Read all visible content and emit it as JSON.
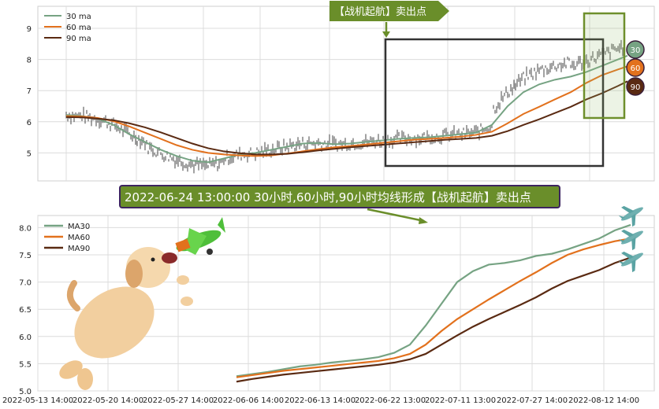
{
  "chart_data": [
    {
      "type": "line",
      "title": "",
      "xlabel": "",
      "ylabel": "",
      "ylim": [
        4.3,
        9.5
      ],
      "y_ticks": [
        "5",
        "6",
        "7",
        "8",
        "9"
      ],
      "grid": true,
      "legend": "top-left",
      "legend_items": [
        "30 ma",
        "60 ma",
        "90 ma"
      ],
      "price_series": "hourly candlesticks (gray)",
      "series": [
        {
          "name": "30 ma",
          "color": "#76a383",
          "x": [
            0,
            20,
            40,
            60,
            80,
            100,
            120,
            140,
            160,
            180,
            200,
            220,
            240,
            260,
            280,
            300,
            320,
            340,
            360,
            380,
            400,
            420,
            440,
            460,
            480,
            500,
            520,
            540,
            560,
            580,
            600,
            620,
            640,
            660,
            680,
            700,
            712
          ],
          "values": [
            6.22,
            6.18,
            6.1,
            5.9,
            5.6,
            5.35,
            5.1,
            4.9,
            4.75,
            4.7,
            4.82,
            4.95,
            5.0,
            5.1,
            5.2,
            5.3,
            5.32,
            5.28,
            5.3,
            5.35,
            5.4,
            5.45,
            5.48,
            5.5,
            5.55,
            5.6,
            5.65,
            5.9,
            6.5,
            6.95,
            7.2,
            7.35,
            7.45,
            7.6,
            7.8,
            8.0,
            8.12
          ]
        },
        {
          "name": "60 ma",
          "color": "#e2711d",
          "x": [
            0,
            20,
            40,
            60,
            80,
            100,
            120,
            140,
            160,
            180,
            200,
            220,
            240,
            260,
            280,
            300,
            320,
            340,
            360,
            380,
            400,
            420,
            440,
            460,
            480,
            500,
            520,
            540,
            560,
            580,
            600,
            620,
            640,
            660,
            680,
            700,
            712
          ],
          "values": [
            6.18,
            6.17,
            6.12,
            6.02,
            5.85,
            5.65,
            5.45,
            5.25,
            5.1,
            5.0,
            4.95,
            4.92,
            4.9,
            4.92,
            4.98,
            5.05,
            5.12,
            5.18,
            5.22,
            5.27,
            5.32,
            5.37,
            5.42,
            5.45,
            5.48,
            5.52,
            5.58,
            5.68,
            5.95,
            6.25,
            6.48,
            6.72,
            6.95,
            7.25,
            7.5,
            7.68,
            7.78
          ]
        },
        {
          "name": "90 ma",
          "color": "#5a2a12",
          "x": [
            0,
            20,
            40,
            60,
            80,
            100,
            120,
            140,
            160,
            180,
            200,
            220,
            240,
            260,
            280,
            300,
            320,
            340,
            360,
            380,
            400,
            420,
            440,
            460,
            480,
            500,
            520,
            540,
            560,
            580,
            600,
            620,
            640,
            660,
            680,
            700,
            712
          ],
          "values": [
            6.15,
            6.14,
            6.1,
            6.05,
            5.95,
            5.82,
            5.66,
            5.48,
            5.3,
            5.15,
            5.05,
            4.99,
            4.95,
            4.95,
            4.97,
            5.02,
            5.08,
            5.13,
            5.18,
            5.22,
            5.26,
            5.3,
            5.34,
            5.38,
            5.42,
            5.45,
            5.48,
            5.55,
            5.7,
            5.9,
            6.08,
            6.28,
            6.48,
            6.72,
            6.92,
            7.15,
            7.3
          ]
        }
      ],
      "end_badges": [
        "30",
        "60",
        "90"
      ],
      "annotation": "【战机起航】卖出点",
      "highlight_boxes": [
        "signal window",
        "latest window"
      ]
    },
    {
      "type": "line",
      "title": "2022-06-24 13:00:00 30小时,60小时,90小时均线形成【战机起航】卖出点",
      "xlabel": "",
      "ylabel": "",
      "ylim": [
        5.0,
        8.25
      ],
      "y_ticks": [
        "5.0",
        "5.5",
        "6.0",
        "6.5",
        "7.0",
        "7.5",
        "8.0"
      ],
      "x_ticks": [
        "2022-05-13 14:00",
        "2022-05-20 14:00",
        "2022-05-27 14:00",
        "2022-06-06 14:00",
        "2022-06-13 14:00",
        "2022-06-22 13:00",
        "2022-07-11 13:00",
        "2022-07-27 14:00",
        "2022-08-12 14:00"
      ],
      "grid": true,
      "legend": "top-left",
      "legend_items": [
        "MA30",
        "MA60",
        "MA90"
      ],
      "series": [
        {
          "name": "MA30",
          "color": "#76a383",
          "x": [
            0,
            20,
            40,
            60,
            80,
            100,
            120,
            140,
            160,
            180,
            200,
            220,
            240,
            260,
            280,
            300,
            320,
            340,
            360,
            380,
            400,
            420,
            440,
            460,
            480,
            500
          ],
          "values": [
            5.27,
            5.31,
            5.35,
            5.4,
            5.45,
            5.48,
            5.52,
            5.55,
            5.58,
            5.62,
            5.7,
            5.85,
            6.2,
            6.6,
            7.0,
            7.2,
            7.32,
            7.35,
            7.4,
            7.48,
            7.52,
            7.6,
            7.7,
            7.8,
            7.95,
            8.05
          ]
        },
        {
          "name": "MA60",
          "color": "#e2711d",
          "x": [
            0,
            20,
            40,
            60,
            80,
            100,
            120,
            140,
            160,
            180,
            200,
            220,
            240,
            260,
            280,
            300,
            320,
            340,
            360,
            380,
            400,
            420,
            440,
            460,
            480,
            500
          ],
          "values": [
            5.25,
            5.29,
            5.33,
            5.37,
            5.4,
            5.43,
            5.46,
            5.49,
            5.52,
            5.55,
            5.6,
            5.68,
            5.85,
            6.1,
            6.32,
            6.5,
            6.68,
            6.85,
            7.02,
            7.18,
            7.35,
            7.5,
            7.6,
            7.68,
            7.75,
            7.8
          ]
        },
        {
          "name": "MA90",
          "color": "#5a2a12",
          "x": [
            0,
            20,
            40,
            60,
            80,
            100,
            120,
            140,
            160,
            180,
            200,
            220,
            240,
            260,
            280,
            300,
            320,
            340,
            360,
            380,
            400,
            420,
            440,
            460,
            480,
            500
          ],
          "values": [
            5.17,
            5.22,
            5.26,
            5.3,
            5.33,
            5.36,
            5.39,
            5.42,
            5.45,
            5.48,
            5.52,
            5.58,
            5.68,
            5.85,
            6.02,
            6.18,
            6.32,
            6.45,
            6.58,
            6.72,
            6.88,
            7.02,
            7.12,
            7.22,
            7.35,
            7.45
          ]
        }
      ]
    }
  ]
}
